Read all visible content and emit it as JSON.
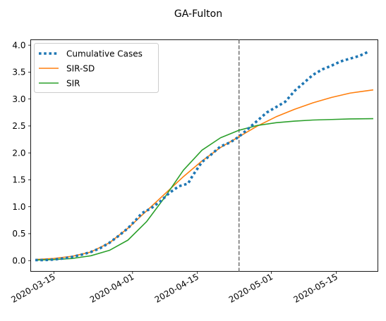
{
  "chart_data": {
    "type": "line",
    "title": "GA-Fulton",
    "xlabel": "",
    "ylabel": "",
    "x_range": [
      "2020-03-10",
      "2020-05-24"
    ],
    "ylim": [
      -0.2,
      4.1
    ],
    "grid": false,
    "legend_position": "upper-left",
    "y_ticks": [
      "0.0",
      "0.5",
      "1.0",
      "1.5",
      "2.0",
      "2.5",
      "3.0",
      "3.5",
      "4.0"
    ],
    "x_ticks": [
      "2020-03-15",
      "2020-04-01",
      "2020-04-15",
      "2020-05-01",
      "2020-05-15"
    ],
    "vline_date": "2020-04-24",
    "series": [
      {
        "name": "Cumulative Cases",
        "color": "#1f77b4",
        "style": "dotted",
        "points": [
          [
            "2020-03-11",
            0.01
          ],
          [
            "2020-03-13",
            0.01
          ],
          [
            "2020-03-15",
            0.02
          ],
          [
            "2020-03-17",
            0.04
          ],
          [
            "2020-03-19",
            0.07
          ],
          [
            "2020-03-21",
            0.11
          ],
          [
            "2020-03-23",
            0.16
          ],
          [
            "2020-03-25",
            0.23
          ],
          [
            "2020-03-27",
            0.33
          ],
          [
            "2020-03-29",
            0.46
          ],
          [
            "2020-03-31",
            0.6
          ],
          [
            "2020-04-02",
            0.78
          ],
          [
            "2020-04-03",
            0.88
          ],
          [
            "2020-04-05",
            0.97
          ],
          [
            "2020-04-07",
            1.1
          ],
          [
            "2020-04-09",
            1.26
          ],
          [
            "2020-04-11",
            1.38
          ],
          [
            "2020-04-13",
            1.43
          ],
          [
            "2020-04-14",
            1.58
          ],
          [
            "2020-04-16",
            1.83
          ],
          [
            "2020-04-18",
            1.97
          ],
          [
            "2020-04-20",
            2.12
          ],
          [
            "2020-04-22",
            2.19
          ],
          [
            "2020-04-24",
            2.3
          ],
          [
            "2020-04-26",
            2.45
          ],
          [
            "2020-04-28",
            2.6
          ],
          [
            "2020-04-30",
            2.75
          ],
          [
            "2020-05-02",
            2.85
          ],
          [
            "2020-05-04",
            2.95
          ],
          [
            "2020-05-06",
            3.15
          ],
          [
            "2020-05-08",
            3.3
          ],
          [
            "2020-05-10",
            3.45
          ],
          [
            "2020-05-12",
            3.55
          ],
          [
            "2020-05-14",
            3.62
          ],
          [
            "2020-05-16",
            3.7
          ],
          [
            "2020-05-18",
            3.75
          ],
          [
            "2020-05-20",
            3.8
          ],
          [
            "2020-05-22",
            3.88
          ]
        ]
      },
      {
        "name": "SIR-SD",
        "color": "#ff7f0e",
        "style": "solid",
        "points": [
          [
            "2020-03-11",
            0.02
          ],
          [
            "2020-03-15",
            0.04
          ],
          [
            "2020-03-19",
            0.08
          ],
          [
            "2020-03-23",
            0.16
          ],
          [
            "2020-03-27",
            0.33
          ],
          [
            "2020-03-31",
            0.6
          ],
          [
            "2020-04-04",
            0.92
          ],
          [
            "2020-04-08",
            1.24
          ],
          [
            "2020-04-12",
            1.56
          ],
          [
            "2020-04-16",
            1.85
          ],
          [
            "2020-04-20",
            2.1
          ],
          [
            "2020-04-24",
            2.3
          ],
          [
            "2020-04-28",
            2.5
          ],
          [
            "2020-05-02",
            2.67
          ],
          [
            "2020-05-06",
            2.81
          ],
          [
            "2020-05-10",
            2.93
          ],
          [
            "2020-05-14",
            3.03
          ],
          [
            "2020-05-18",
            3.11
          ],
          [
            "2020-05-23",
            3.17
          ]
        ]
      },
      {
        "name": "SIR",
        "color": "#2ca02c",
        "style": "solid",
        "points": [
          [
            "2020-03-11",
            0.01
          ],
          [
            "2020-03-15",
            0.02
          ],
          [
            "2020-03-19",
            0.04
          ],
          [
            "2020-03-23",
            0.09
          ],
          [
            "2020-03-27",
            0.19
          ],
          [
            "2020-03-31",
            0.38
          ],
          [
            "2020-04-04",
            0.72
          ],
          [
            "2020-04-08",
            1.18
          ],
          [
            "2020-04-12",
            1.68
          ],
          [
            "2020-04-16",
            2.05
          ],
          [
            "2020-04-20",
            2.28
          ],
          [
            "2020-04-24",
            2.42
          ],
          [
            "2020-04-28",
            2.51
          ],
          [
            "2020-05-02",
            2.56
          ],
          [
            "2020-05-06",
            2.59
          ],
          [
            "2020-05-10",
            2.61
          ],
          [
            "2020-05-14",
            2.62
          ],
          [
            "2020-05-18",
            2.63
          ],
          [
            "2020-05-23",
            2.635
          ]
        ]
      }
    ]
  }
}
